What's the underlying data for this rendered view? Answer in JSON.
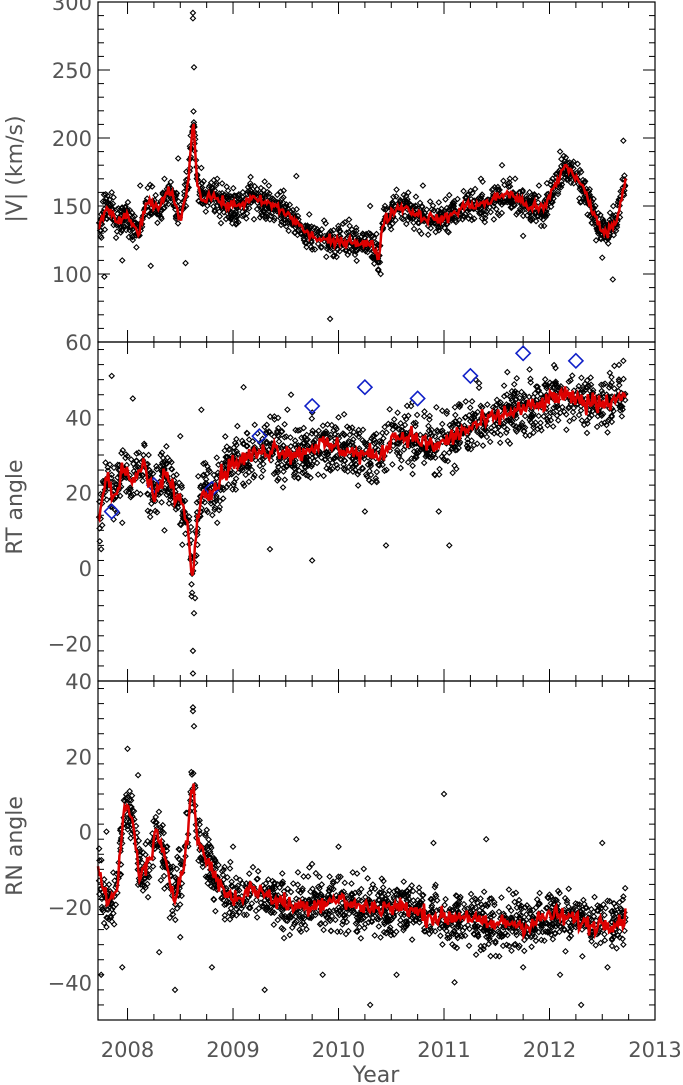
{
  "chart_data": [
    {
      "type": "scatter",
      "ylabel": "|V| (km/s)",
      "xlim": [
        2007.72,
        2013.0
      ],
      "ylim": [
        50,
        300
      ],
      "yticks": [
        100,
        150,
        200,
        250,
        300
      ],
      "xticks": [
        2008,
        2009,
        2010,
        2011,
        2012,
        2013
      ],
      "show_xticklabels": false,
      "scatter_color": "#000000",
      "line_color": "#dd0000",
      "line": {
        "name": "",
        "x": [
          2007.72,
          2007.8,
          2007.9,
          2008.0,
          2008.1,
          2008.2,
          2008.3,
          2008.4,
          2008.5,
          2008.58,
          2008.62,
          2008.66,
          2008.7,
          2008.8,
          2008.9,
          2009.0,
          2009.2,
          2009.4,
          2009.55,
          2009.7,
          2009.8,
          2009.9,
          2010.0,
          2010.1,
          2010.2,
          2010.32,
          2010.38,
          2010.42,
          2010.5,
          2010.6,
          2010.8,
          2011.0,
          2011.2,
          2011.4,
          2011.6,
          2011.8,
          2011.95,
          2012.05,
          2012.15,
          2012.25,
          2012.35,
          2012.45,
          2012.55,
          2012.65,
          2012.72
        ],
        "y": [
          132,
          150,
          138,
          142,
          130,
          154,
          148,
          162,
          140,
          168,
          218,
          168,
          155,
          158,
          152,
          150,
          155,
          150,
          142,
          130,
          126,
          124,
          123,
          125,
          123,
          121,
          112,
          138,
          145,
          150,
          142,
          140,
          150,
          152,
          160,
          150,
          148,
          165,
          180,
          172,
          158,
          138,
          130,
          142,
          172
        ]
      },
      "scatter": {
        "x": [
          2007.78,
          2007.85,
          2007.95,
          2008.05,
          2008.12,
          2008.22,
          2008.35,
          2008.48,
          2008.55,
          2008.62,
          2008.62,
          2008.63,
          2008.7,
          2008.85,
          2009.05,
          2009.3,
          2009.6,
          2009.75,
          2009.92,
          2010.1,
          2010.3,
          2010.4,
          2010.55,
          2010.8,
          2011.05,
          2011.35,
          2011.55,
          2011.75,
          2011.9,
          2012.1,
          2012.3,
          2012.5,
          2012.6,
          2012.7
        ],
        "y": [
          98,
          160,
          110,
          125,
          165,
          106,
          170,
          185,
          108,
          292,
          288,
          252,
          178,
          170,
          138,
          168,
          172,
          118,
          67,
          140,
          150,
          100,
          162,
          165,
          158,
          170,
          180,
          128,
          165,
          190,
          175,
          112,
          96,
          198
        ]
      }
    },
    {
      "type": "scatter",
      "ylabel": "RT angle",
      "xlim": [
        2007.72,
        2013.0
      ],
      "ylim": [
        -30,
        60
      ],
      "yticks": [
        -20,
        0,
        20,
        40,
        60
      ],
      "xticks": [
        2008,
        2009,
        2010,
        2011,
        2012,
        2013
      ],
      "show_xticklabels": false,
      "scatter_color": "#000000",
      "line_color": "#dd0000",
      "marker_color": "#1020c8",
      "line": {
        "name": "",
        "x": [
          2007.72,
          2007.8,
          2007.88,
          2007.95,
          2008.05,
          2008.15,
          2008.25,
          2008.35,
          2008.45,
          2008.55,
          2008.62,
          2008.67,
          2008.72,
          2008.8,
          2008.9,
          2009.0,
          2009.2,
          2009.4,
          2009.6,
          2009.8,
          2010.0,
          2010.2,
          2010.3,
          2010.42,
          2010.5,
          2010.7,
          2010.9,
          2011.1,
          2011.3,
          2011.5,
          2011.7,
          2011.9,
          2012.1,
          2012.3,
          2012.5,
          2012.72
        ],
        "y": [
          12,
          25,
          18,
          28,
          22,
          28,
          18,
          25,
          20,
          15,
          -2,
          15,
          22,
          20,
          25,
          28,
          30,
          32,
          30,
          33,
          32,
          30,
          30,
          30,
          35,
          35,
          32,
          35,
          38,
          40,
          42,
          43,
          46,
          44,
          44,
          46
        ]
      },
      "scatter": {
        "x": [
          2007.75,
          2007.85,
          2007.95,
          2008.05,
          2008.2,
          2008.35,
          2008.5,
          2008.62,
          2008.62,
          2008.63,
          2008.64,
          2008.7,
          2008.85,
          2009.1,
          2009.35,
          2009.55,
          2009.75,
          2010.0,
          2010.25,
          2010.45,
          2010.7,
          2010.95,
          2011.05,
          2011.3,
          2011.6,
          2011.85,
          2012.05,
          2012.35,
          2012.55,
          2012.7
        ],
        "y": [
          5,
          51,
          12,
          45,
          30,
          10,
          35,
          -28,
          -22,
          -12,
          -8,
          42,
          12,
          48,
          5,
          46,
          2,
          40,
          15,
          6,
          44,
          15,
          6,
          50,
          52,
          38,
          46,
          48,
          36,
          55
        ]
      },
      "markers": {
        "x": [
          2007.85,
          2008.25,
          2008.8,
          2009.25,
          2009.75,
          2010.25,
          2010.75,
          2011.25,
          2011.75,
          2012.25
        ],
        "y": [
          15,
          22,
          21,
          35,
          43,
          48,
          45,
          51,
          57,
          55
        ]
      }
    },
    {
      "type": "scatter",
      "ylabel": "RN angle",
      "xlabel": "Year",
      "xlim": [
        2007.72,
        2013.0
      ],
      "ylim": [
        -50,
        40
      ],
      "yticks": [
        -40,
        -20,
        0,
        20,
        40
      ],
      "xticks": [
        2008,
        2009,
        2010,
        2011,
        2012,
        2013
      ],
      "xticklabels": [
        "2008",
        "2009",
        "2010",
        "2011",
        "2012",
        "2013"
      ],
      "show_xticklabels": true,
      "scatter_color": "#000000",
      "line_color": "#dd0000",
      "line": {
        "name": "",
        "x": [
          2007.72,
          2007.82,
          2007.9,
          2007.98,
          2008.05,
          2008.12,
          2008.2,
          2008.28,
          2008.35,
          2008.45,
          2008.55,
          2008.62,
          2008.66,
          2008.72,
          2008.8,
          2008.9,
          2009.0,
          2009.2,
          2009.4,
          2009.6,
          2009.8,
          2010.0,
          2010.2,
          2010.4,
          2010.6,
          2010.8,
          2011.0,
          2011.2,
          2011.4,
          2011.6,
          2011.8,
          2012.0,
          2012.2,
          2012.4,
          2012.5,
          2012.6,
          2012.72
        ],
        "y": [
          -10,
          -20,
          -15,
          8,
          2,
          -12,
          -8,
          0,
          -8,
          -18,
          -5,
          14,
          -2,
          -6,
          -10,
          -15,
          -18,
          -15,
          -18,
          -20,
          -19,
          -18,
          -20,
          -20,
          -20,
          -22,
          -23,
          -22,
          -25,
          -24,
          -25,
          -22,
          -23,
          -25,
          -24,
          -24,
          -23
        ]
      },
      "scatter": {
        "x": [
          2007.75,
          2007.8,
          2007.95,
          2008.0,
          2008.1,
          2008.3,
          2008.45,
          2008.5,
          2008.62,
          2008.62,
          2008.63,
          2008.8,
          2009.0,
          2009.3,
          2009.6,
          2009.85,
          2010.0,
          2010.3,
          2010.55,
          2010.9,
          2011.0,
          2011.1,
          2011.4,
          2011.75,
          2012.1,
          2012.3,
          2012.5,
          2012.55,
          2012.7
        ],
        "y": [
          -38,
          0,
          -36,
          22,
          15,
          -32,
          -42,
          -28,
          33,
          32,
          28,
          -36,
          -4,
          -42,
          -2,
          -38,
          -4,
          -46,
          -38,
          -3,
          10,
          -40,
          -2,
          -36,
          -38,
          -46,
          -3,
          -36,
          -30
        ]
      }
    }
  ]
}
